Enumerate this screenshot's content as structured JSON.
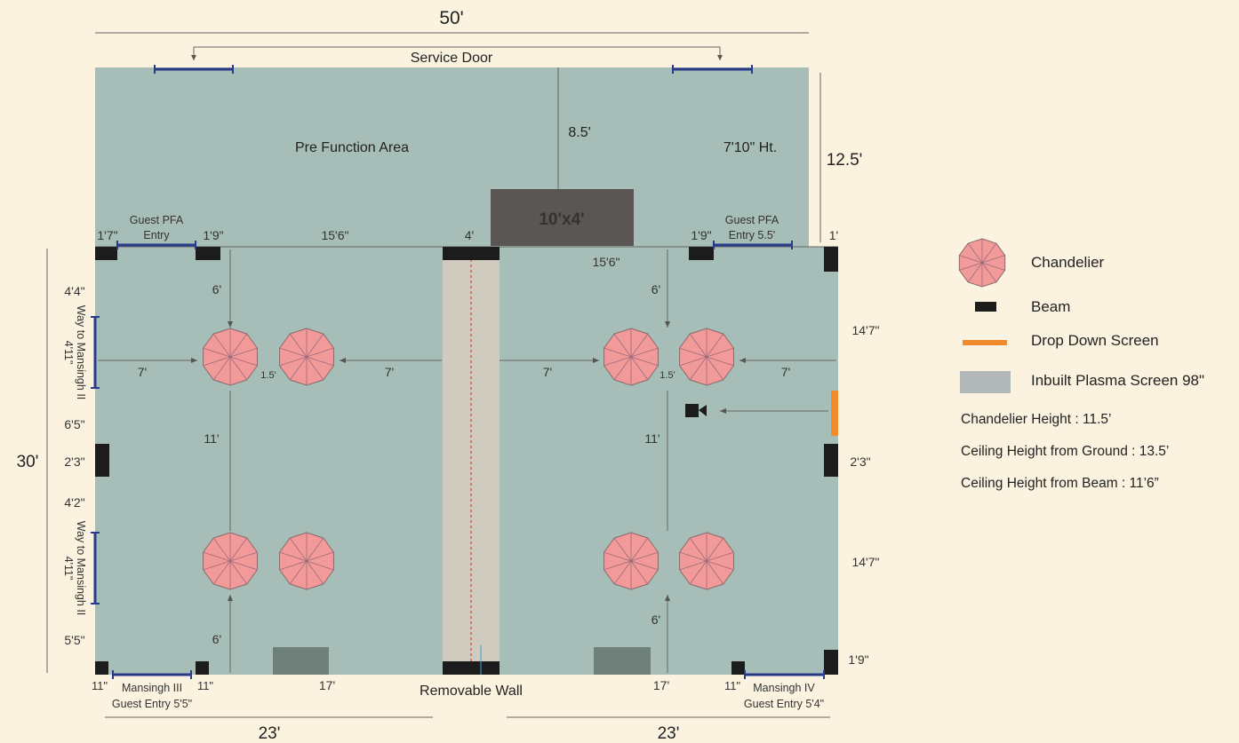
{
  "colors": {
    "background": "#fbf3e0",
    "room": "#a7bdb7",
    "beam": "#1c1c1c",
    "door": "#2a3a8a",
    "chandelier": "#f29a9a",
    "drop_down_screen": "#f08a2a",
    "plasma_screen": "#6f7f7a",
    "removable_wall": "#cfcbbf",
    "stage": "#595654"
  },
  "plan": {
    "top_width": "50'",
    "service_door": "Service Door",
    "pre_function_area": "Pre Function Area",
    "pfa_depth": "8.5'",
    "pfa_height": "7'10\" Ht.",
    "pfa_side": "12.5'",
    "stage": "10'x4'",
    "left_height": "30'",
    "bottom_left_width": "23'",
    "bottom_right_width": "23'",
    "removable_wall": "Removable Wall",
    "guest_pfa_left": [
      "Guest PFA",
      "Entry"
    ],
    "guest_pfa_right": [
      "Guest PFA",
      "Entry 5.5'"
    ],
    "way_to_mansingh": [
      "Way to Mansingh II",
      "4'11\""
    ],
    "mansingh_iii": [
      "Mansingh III",
      "Guest Entry 5'5\""
    ],
    "mansingh_iv": [
      "Mansingh IV",
      "Guest Entry 5'4\""
    ],
    "dims": {
      "d_1_7": "1'7\"",
      "d_1_9": "1'9\"",
      "d_15_6": "15'6\"",
      "d_4": "4'",
      "d_1": "1'",
      "d_4_4": "4'4\"",
      "d_6_5": "6'5\"",
      "d_2_3": "2'3\"",
      "d_4_2": "4'2\"",
      "d_5_5": "5'5\"",
      "d_6": "6'",
      "d_7": "7'",
      "d_1_5": "1.5'",
      "d_11": "11'",
      "d_14_7": "14'7\"",
      "d_17": "17'",
      "d_11in": "11\""
    }
  },
  "legend": {
    "chandelier": "Chandelier",
    "beam": "Beam",
    "drop_down_screen": "Drop Down Screen",
    "plasma_screen": "Inbuilt Plasma Screen 98\"",
    "notes": [
      "Chandelier Height : 11.5’",
      "Ceiling Height from Ground : 13.5’",
      "Ceiling Height from Beam : 11’6”"
    ]
  }
}
